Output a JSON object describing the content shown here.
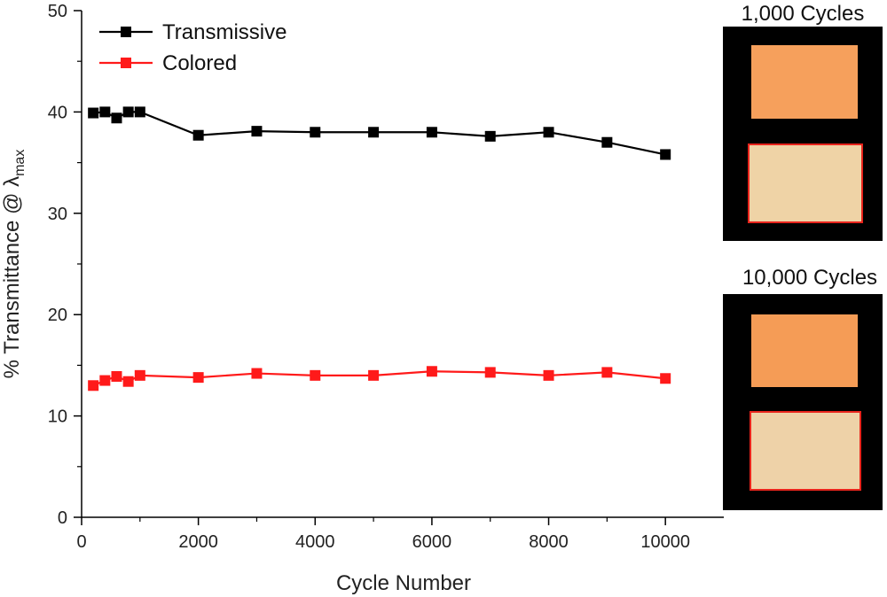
{
  "chart_data": {
    "type": "line",
    "xlabel": "Cycle Number",
    "ylabel": "% Transmittance @ λ",
    "ylabel_sub": "max",
    "xlim": [
      0,
      11000
    ],
    "ylim": [
      0,
      50
    ],
    "xticks": [
      0,
      2000,
      4000,
      6000,
      8000,
      10000
    ],
    "yticks": [
      0,
      10,
      20,
      30,
      40,
      50
    ],
    "legend_position": "top-left",
    "grid": false,
    "series": [
      {
        "name": "Transmissive",
        "color": "#000000",
        "marker": "square",
        "x": [
          200,
          400,
          600,
          800,
          1000,
          2000,
          3000,
          4000,
          5000,
          6000,
          7000,
          8000,
          9000,
          10000
        ],
        "y": [
          39.9,
          40.0,
          39.4,
          40.0,
          40.0,
          37.7,
          38.1,
          38.0,
          38.0,
          38.0,
          37.6,
          38.0,
          37.0,
          35.8
        ]
      },
      {
        "name": "Colored",
        "color": "#ff1a1a",
        "marker": "square",
        "x": [
          200,
          400,
          600,
          800,
          1000,
          2000,
          3000,
          4000,
          5000,
          6000,
          7000,
          8000,
          9000,
          10000
        ],
        "y": [
          13.0,
          13.5,
          13.9,
          13.4,
          14.0,
          13.8,
          14.2,
          14.0,
          14.0,
          14.4,
          14.3,
          14.0,
          14.3,
          13.7
        ]
      }
    ]
  },
  "insets": [
    {
      "title": "1,000 Cycles",
      "frame_color": "#000000",
      "colored_swatch": "#f6a05c",
      "transmissive_swatch": "#efd3a6",
      "highlight_color": "#e8241c"
    },
    {
      "title": "10,000 Cycles",
      "frame_color": "#000000",
      "colored_swatch": "#f59c56",
      "transmissive_swatch": "#eed2a8",
      "highlight_color": "#e8241c"
    }
  ]
}
